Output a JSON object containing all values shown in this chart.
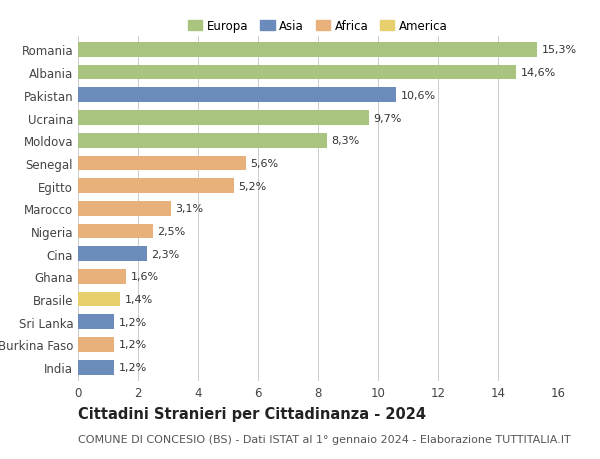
{
  "countries": [
    "Romania",
    "Albania",
    "Pakistan",
    "Ucraina",
    "Moldova",
    "Senegal",
    "Egitto",
    "Marocco",
    "Nigeria",
    "Cina",
    "Ghana",
    "Brasile",
    "Sri Lanka",
    "Burkina Faso",
    "India"
  ],
  "values": [
    15.3,
    14.6,
    10.6,
    9.7,
    8.3,
    5.6,
    5.2,
    3.1,
    2.5,
    2.3,
    1.6,
    1.4,
    1.2,
    1.2,
    1.2
  ],
  "labels": [
    "15,3%",
    "14,6%",
    "10,6%",
    "9,7%",
    "8,3%",
    "5,6%",
    "5,2%",
    "3,1%",
    "2,5%",
    "2,3%",
    "1,6%",
    "1,4%",
    "1,2%",
    "1,2%",
    "1,2%"
  ],
  "continents": [
    "Europa",
    "Europa",
    "Asia",
    "Europa",
    "Europa",
    "Africa",
    "Africa",
    "Africa",
    "Africa",
    "Asia",
    "Africa",
    "America",
    "Asia",
    "Africa",
    "Asia"
  ],
  "colors": {
    "Europa": "#a8c47f",
    "Asia": "#6b8cba",
    "Africa": "#e8b07a",
    "America": "#e8cf6e"
  },
  "legend_order": [
    "Europa",
    "Asia",
    "Africa",
    "America"
  ],
  "title": "Cittadini Stranieri per Cittadinanza - 2024",
  "subtitle": "COMUNE DI CONCESIO (BS) - Dati ISTAT al 1° gennaio 2024 - Elaborazione TUTTITALIA.IT",
  "xlim": [
    0,
    16
  ],
  "xticks": [
    0,
    2,
    4,
    6,
    8,
    10,
    12,
    14,
    16
  ],
  "background_color": "#ffffff",
  "grid_color": "#cccccc",
  "bar_height": 0.65,
  "title_fontsize": 10.5,
  "subtitle_fontsize": 8,
  "tick_fontsize": 8.5,
  "label_fontsize": 8,
  "legend_fontsize": 8.5
}
